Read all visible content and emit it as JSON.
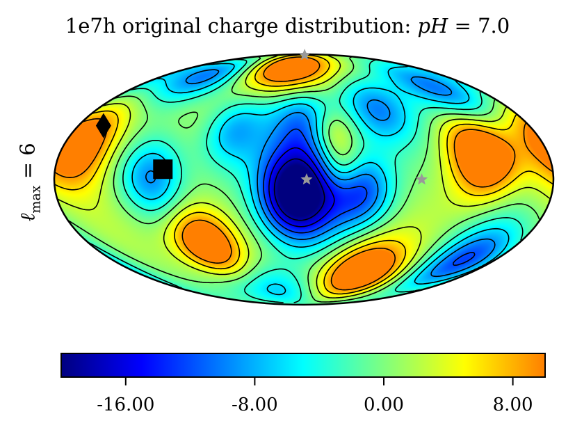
{
  "chart_data": {
    "type": "heatmap",
    "projection": "mollweide",
    "title_prefix": "1e7h original charge distribution: ",
    "title_math": "pH",
    "title_suffix": " = 7.0",
    "ylabel_symbol": "ℓ",
    "ylabel_sub": "max",
    "ylabel_suffix": " = 6",
    "colorbar": {
      "vmin": -20.0,
      "vmax": 10.0,
      "ticks": [
        -16.0,
        -8.0,
        0.0,
        8.0
      ],
      "tick_labels": [
        "-16.00",
        "-8.00",
        "0.00",
        "8.00"
      ],
      "colormap": [
        "#00007f",
        "#0000ff",
        "#007fff",
        "#00ffff",
        "#7fff7f",
        "#ffff00",
        "#ff7f00"
      ]
    },
    "contour_levels": [
      -18,
      -15,
      -12,
      -9,
      -6,
      -3,
      0,
      3,
      6,
      9
    ],
    "field_features": [
      {
        "name": "deep-minimum",
        "lon": -5,
        "lat": -8,
        "amp": -26,
        "spread": 20
      },
      {
        "name": "east-minimum",
        "lon": 42,
        "lat": -6,
        "amp": -12,
        "spread": 16
      },
      {
        "name": "north-east-minimum-1",
        "lon": 62,
        "lat": 42,
        "amp": -10,
        "spread": 15
      },
      {
        "name": "north-central-minimum",
        "lon": 0,
        "lat": 36,
        "amp": -9,
        "spread": 15
      },
      {
        "name": "north-west-minimum-1",
        "lon": -55,
        "lat": 28,
        "amp": -8,
        "spread": 15
      },
      {
        "name": "west-minimum",
        "lon": -110,
        "lat": 2,
        "amp": -10,
        "spread": 16
      },
      {
        "name": "north-far-west-minimum",
        "lon": -120,
        "lat": 68,
        "amp": -12,
        "spread": 14
      },
      {
        "name": "north-east-minimum-2",
        "lon": 140,
        "lat": 55,
        "amp": -12,
        "spread": 16
      },
      {
        "name": "south-east-minimum",
        "lon": 150,
        "lat": -50,
        "amp": -12,
        "spread": 16
      },
      {
        "name": "south-minimum",
        "lon": -40,
        "lat": -72,
        "amp": -8,
        "spread": 14
      },
      {
        "name": "north-maximum",
        "lon": -25,
        "lat": 74,
        "amp": 16,
        "spread": 14
      },
      {
        "name": "west-edge-maximum",
        "lon": -168,
        "lat": 20,
        "amp": 15,
        "spread": 18
      },
      {
        "name": "south-west-maximum",
        "lon": -82,
        "lat": -38,
        "amp": 16,
        "spread": 15
      },
      {
        "name": "east-maximum",
        "lon": 130,
        "lat": 14,
        "amp": 16,
        "spread": 17
      },
      {
        "name": "south-maximum",
        "lon": 60,
        "lat": -58,
        "amp": 16,
        "spread": 15
      },
      {
        "name": "central-maximum",
        "lon": 28,
        "lat": 8,
        "amp": 6,
        "spread": 11
      },
      {
        "name": "north-central-maximum",
        "lon": 22,
        "lat": 28,
        "amp": 5,
        "spread": 10
      }
    ],
    "markers": [
      {
        "shape": "diamond",
        "color": "#000000",
        "lon": -160,
        "lat": 32
      },
      {
        "shape": "square",
        "color": "#000000",
        "lon": -102,
        "lat": 6
      },
      {
        "shape": "star",
        "color": "#999999",
        "lon": 2,
        "lat": 0
      },
      {
        "shape": "star",
        "color": "#999999",
        "lon": 85,
        "lat": 0
      },
      {
        "shape": "star",
        "color": "#999999",
        "lon": 5,
        "lat": 88
      }
    ]
  }
}
